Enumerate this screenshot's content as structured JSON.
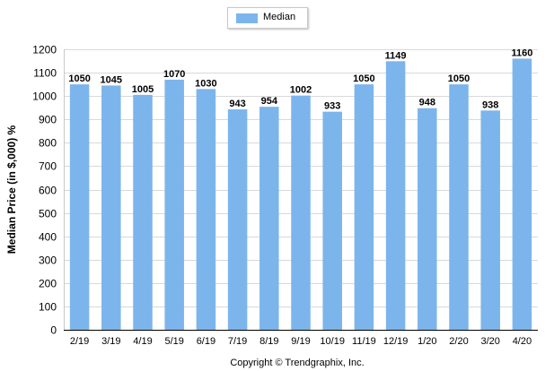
{
  "chart_data": {
    "type": "bar",
    "title": "",
    "xlabel": "",
    "ylabel": "Median Price (in $,000) %",
    "ylim": [
      0,
      1200
    ],
    "yticks": [
      0,
      100,
      200,
      300,
      400,
      500,
      600,
      700,
      800,
      900,
      1000,
      1100,
      1200
    ],
    "grid": true,
    "legend_position": "top-center",
    "categories": [
      "2/19",
      "3/19",
      "4/19",
      "5/19",
      "6/19",
      "7/19",
      "8/19",
      "9/19",
      "10/19",
      "11/19",
      "12/19",
      "1/20",
      "2/20",
      "3/20",
      "4/20"
    ],
    "series": [
      {
        "name": "Median",
        "color": "#7cb5ec",
        "values": [
          1050,
          1045,
          1005,
          1070,
          1030,
          943,
          954,
          1002,
          933,
          1050,
          1149,
          948,
          1050,
          938,
          1160
        ]
      }
    ]
  },
  "footer": {
    "copyright": "Copyright © Trendgraphix, Inc."
  }
}
